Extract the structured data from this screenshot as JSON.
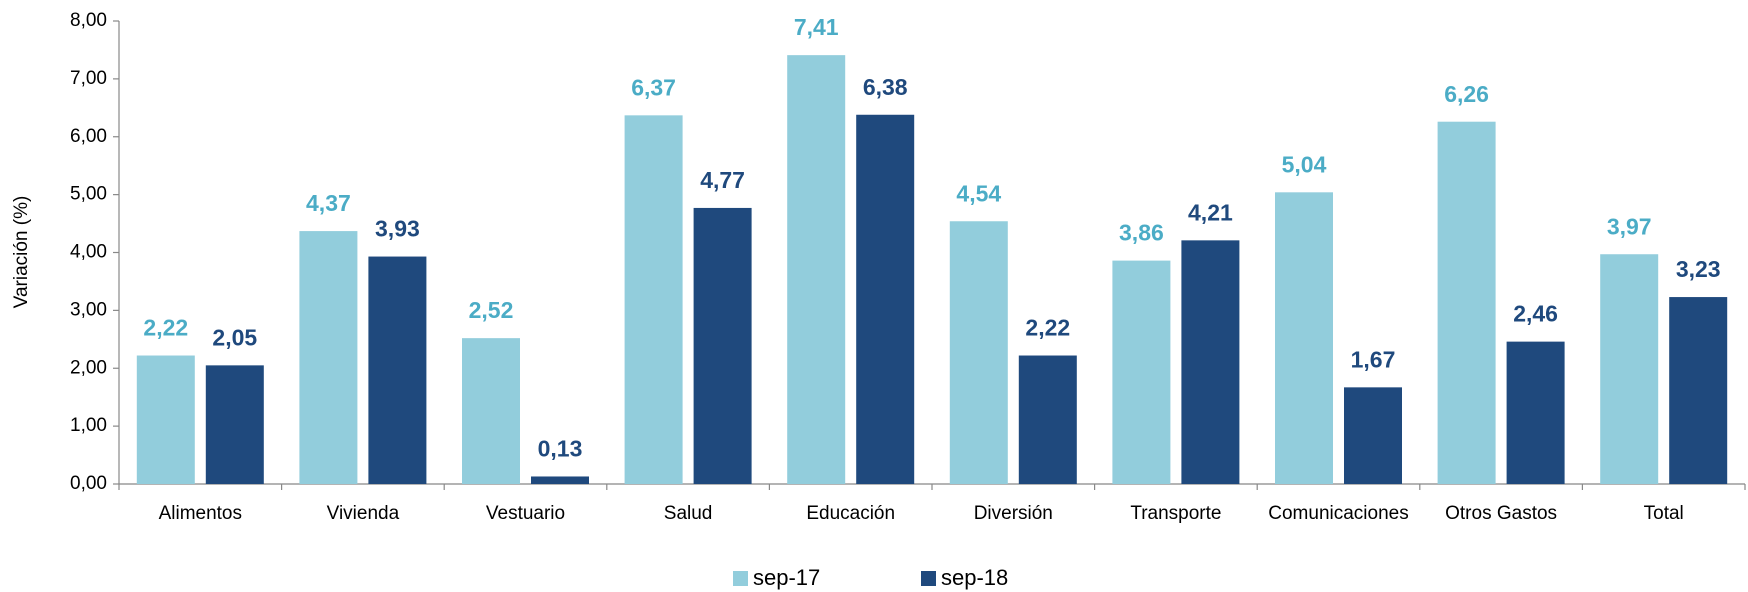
{
  "chart_data": {
    "type": "bar",
    "y_label": "Variación (%)",
    "categories": [
      "Alimentos",
      "Vivienda",
      "Vestuario",
      "Salud",
      "Educación",
      "Diversión",
      "Transporte",
      "Comunicaciones",
      "Otros Gastos",
      "Total"
    ],
    "series": [
      {
        "name": "sep-17",
        "color": "#92cddc",
        "label_color": "#4bacc6",
        "values": [
          2.22,
          4.37,
          2.52,
          6.37,
          7.41,
          4.54,
          3.86,
          5.04,
          6.26,
          3.97
        ],
        "value_labels": [
          "2,22",
          "4,37",
          "2,52",
          "6,37",
          "7,41",
          "4,54",
          "3,86",
          "5,04",
          "6,26",
          "3,97"
        ]
      },
      {
        "name": "sep-18",
        "color": "#1f497d",
        "label_color": "#1f497d",
        "values": [
          2.05,
          3.93,
          0.13,
          4.77,
          6.38,
          2.22,
          4.21,
          1.67,
          2.46,
          3.23
        ],
        "value_labels": [
          "2,05",
          "3,93",
          "0,13",
          "4,77",
          "6,38",
          "2,22",
          "4,21",
          "1,67",
          "2,46",
          "3,23"
        ]
      }
    ],
    "ylim": [
      0,
      8
    ],
    "yticks": [
      {
        "value": 0,
        "label": "0,00"
      },
      {
        "value": 1,
        "label": "1,00"
      },
      {
        "value": 2,
        "label": "2,00"
      },
      {
        "value": 3,
        "label": "3,00"
      },
      {
        "value": 4,
        "label": "4,00"
      },
      {
        "value": 5,
        "label": "5,00"
      },
      {
        "value": 6,
        "label": "6,00"
      },
      {
        "value": 7,
        "label": "7,00"
      },
      {
        "value": 8,
        "label": "8,00"
      }
    ],
    "grid": false,
    "legend": "bottom"
  }
}
